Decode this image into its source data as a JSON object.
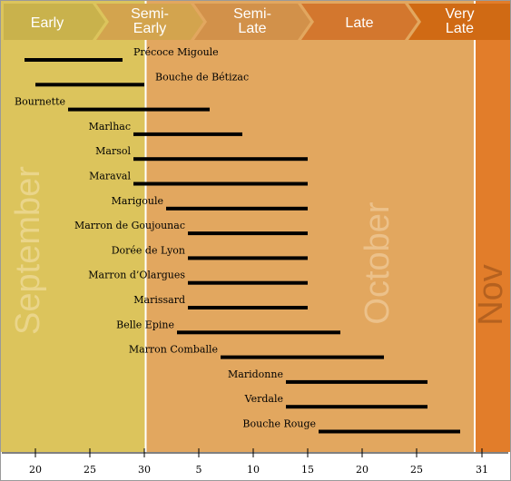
{
  "chart_data": {
    "type": "bar",
    "orientation": "horizontal",
    "x_axis": {
      "start": "September 18",
      "end": "November 3",
      "ticks": [
        {
          "day": 20,
          "month": "September",
          "label": "20"
        },
        {
          "day": 25,
          "month": "September",
          "label": "25"
        },
        {
          "day": 30,
          "month": "September",
          "label": "30"
        },
        {
          "day": 5,
          "month": "October",
          "label": "5"
        },
        {
          "day": 10,
          "month": "October",
          "label": "10"
        },
        {
          "day": 15,
          "month": "October",
          "label": "15"
        },
        {
          "day": 20,
          "month": "October",
          "label": "20"
        },
        {
          "day": 25,
          "month": "October",
          "label": "25"
        },
        {
          "day": 31,
          "month": "October",
          "label": "31"
        }
      ]
    },
    "months": [
      {
        "name": "September",
        "label": "September",
        "start": "September 18",
        "end": "September 30",
        "color": "#dcc45c",
        "text_color": "#ead58a"
      },
      {
        "name": "October",
        "label": "October",
        "start": "October 1",
        "end": "October 31",
        "color": "#e2a75f",
        "text_color": "#ecc18a"
      },
      {
        "name": "November",
        "label": "Nov",
        "start": "November 1",
        "end": "November 3",
        "color": "#e27d2a",
        "text_color": "#b5611f"
      }
    ],
    "phases": [
      {
        "label": "Early",
        "lines": [
          "Early"
        ],
        "color": "#c9b24c"
      },
      {
        "label": "Semi-Early",
        "lines": [
          "Semi-",
          "Early"
        ],
        "color": "#d3a44e"
      },
      {
        "label": "Semi-Late",
        "lines": [
          "Semi-",
          "Late"
        ],
        "color": "#d2914a"
      },
      {
        "label": "Late",
        "lines": [
          "Late"
        ],
        "color": "#d3772e"
      },
      {
        "label": "Very Late",
        "lines": [
          "Very",
          "Late"
        ],
        "color": "#d06a14"
      }
    ],
    "series": [
      {
        "category": "Précoce Migoule",
        "start": "September 19",
        "end": "September 28"
      },
      {
        "category": "Bouche de Bétizac",
        "start": "September 20",
        "end": "September 30"
      },
      {
        "category": "Bournette",
        "start": "September 23",
        "end": "October 6"
      },
      {
        "category": "Marlhac",
        "start": "September 29",
        "end": "October 9"
      },
      {
        "category": "Marsol",
        "start": "September 29",
        "end": "October 15"
      },
      {
        "category": "Maraval",
        "start": "September 29",
        "end": "October 15"
      },
      {
        "category": "Marigoule",
        "start": "October 2",
        "end": "October 15"
      },
      {
        "category": "Marron de Goujounac",
        "start": "October 4",
        "end": "October 15"
      },
      {
        "category": "Dorée de Lyon",
        "start": "October 4",
        "end": "October 15"
      },
      {
        "category": "Marron d’Olargues",
        "start": "October 4",
        "end": "October 15"
      },
      {
        "category": "Marissard",
        "start": "October 4",
        "end": "October 15"
      },
      {
        "category": "Belle Epine",
        "start": "October 3",
        "end": "October 18"
      },
      {
        "category": "Marron Comballe",
        "start": "October 7",
        "end": "October 22"
      },
      {
        "category": "Maridonne",
        "start": "October 13",
        "end": "October 26"
      },
      {
        "category": "Verdale",
        "start": "October 13",
        "end": "October 26"
      },
      {
        "category": "Bouche Rouge",
        "start": "October 16",
        "end": "October 29"
      }
    ]
  }
}
